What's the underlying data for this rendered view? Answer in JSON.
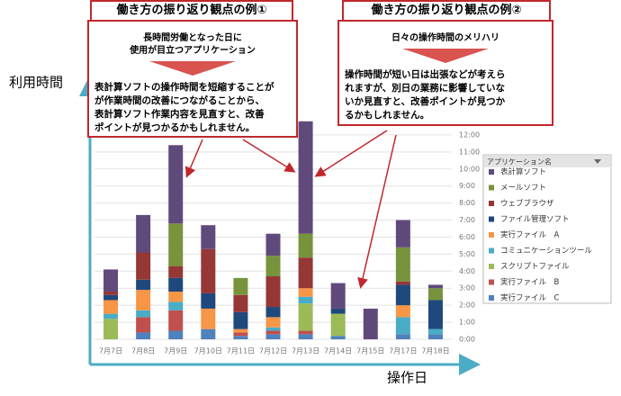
{
  "chart_data": {
    "type": "bar",
    "stacked": true,
    "y_label": "利用時間",
    "x_label": "操作日",
    "legend_title": "アプリケーション名",
    "legend": "right",
    "categories": [
      "7月7日",
      "7月8日",
      "7月9日",
      "7月10日",
      "7月11日",
      "7月12日",
      "7月13日",
      "7月14日",
      "7月15日",
      "7月17日",
      "7月18日"
    ],
    "ylim": [
      0,
      13
    ],
    "yticks": [
      {
        "value": 0,
        "label": "0:00"
      },
      {
        "value": 1,
        "label": "1:00"
      },
      {
        "value": 2,
        "label": "2:00"
      },
      {
        "value": 3,
        "label": "3:00"
      },
      {
        "value": 4,
        "label": "4:00"
      },
      {
        "value": 5,
        "label": "5:00"
      },
      {
        "value": 6,
        "label": "6:00"
      },
      {
        "value": 7,
        "label": "7:00"
      },
      {
        "value": 8,
        "label": "8:00"
      },
      {
        "value": 9,
        "label": "9:00"
      },
      {
        "value": 10,
        "label": "10:00"
      },
      {
        "value": 11,
        "label": "11:00"
      },
      {
        "value": 12,
        "label": "12:00"
      }
    ],
    "grid": true,
    "series": [
      {
        "name": "表計算ソフト",
        "color": "#5f4a7b",
        "values": [
          1.3,
          2.2,
          4.6,
          1.4,
          0,
          1.3,
          6.6,
          1.5,
          1.8,
          1.6,
          0.2
        ]
      },
      {
        "name": "メールソフト",
        "color": "#77933c",
        "values": [
          0,
          0,
          2.5,
          0,
          1.0,
          1.2,
          1.4,
          0,
          0,
          2.0,
          0.7
        ]
      },
      {
        "name": "ウェブブラウザ",
        "color": "#953735",
        "values": [
          0.2,
          1.6,
          0.7,
          2.6,
          1.0,
          1.8,
          1.8,
          0,
          0,
          0.2,
          0
        ]
      },
      {
        "name": "ファイル管理ソフト",
        "color": "#1f497d",
        "values": [
          0.3,
          0.6,
          0.8,
          0.9,
          1.0,
          0.6,
          0,
          0.3,
          0,
          1.2,
          1.7
        ]
      },
      {
        "name": "実行ファイル　A",
        "color": "#f79646",
        "values": [
          0.8,
          1.2,
          0.6,
          1.2,
          0.2,
          0.6,
          0.5,
          0,
          0,
          0.7,
          0
        ]
      },
      {
        "name": "コミュニケーションツール",
        "color": "#4bacc6",
        "values": [
          0.3,
          0.4,
          0.5,
          0,
          0,
          0.2,
          0.4,
          0,
          0,
          1.0,
          0.3
        ]
      },
      {
        "name": "スクリプトファイル",
        "color": "#9bbb59",
        "values": [
          1.2,
          0,
          0,
          0,
          0,
          0,
          1.6,
          1.3,
          0,
          0,
          0
        ]
      },
      {
        "name": "実行ファイル　B",
        "color": "#c0504d",
        "values": [
          0,
          0.9,
          1.2,
          0,
          0.2,
          0.2,
          0.2,
          0,
          0,
          0,
          0
        ]
      },
      {
        "name": "実行ファイル　C",
        "color": "#4f81bd",
        "values": [
          0,
          0.4,
          0.5,
          0.6,
          0.2,
          0.3,
          0.3,
          0.2,
          0,
          0.3,
          0.3
        ]
      }
    ],
    "annotations": [
      {
        "title": "働き方の振り返り観点の例①",
        "subtitle": [
          "長時間労働となった日に",
          "使用が目立つアプリケーション"
        ],
        "body": [
          "表計算ソフトの操作時間を短縮することが",
          "が作業時間の改善につながることから、",
          "表計算ソフト作業内容を見直すと、改善",
          "ポイントが見つかるかもしれません。"
        ]
      },
      {
        "title": "働き方の振り返り観点の例②",
        "subtitle": [
          "日々の操作時間のメリハリ"
        ],
        "body": [
          "操作時間が短い日は出張などが考えら",
          "れますが、別日の業務に影響していな",
          "いか見直すと、改善ポイントが見つか",
          "るかもしれません。"
        ]
      }
    ]
  }
}
